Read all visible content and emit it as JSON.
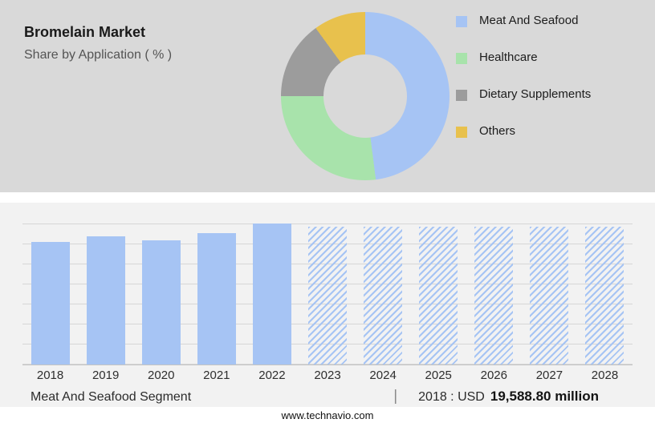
{
  "header": {
    "title": "Bromelain Market",
    "subtitle": "Share by Application ( % )"
  },
  "legend": {
    "items": [
      {
        "label": "Meat And Seafood",
        "color": "#a6c4f4"
      },
      {
        "label": "Healthcare",
        "color": "#a8e3ab"
      },
      {
        "label": "Dietary Supplements",
        "color": "#9c9c9c"
      },
      {
        "label": "Others",
        "color": "#e8c14d"
      }
    ]
  },
  "chart_data": [
    {
      "type": "pie",
      "subtype": "donut",
      "title": "Bromelain Market — Share by Application ( % )",
      "labels": [
        "Meat And Seafood",
        "Healthcare",
        "Dietary Supplements",
        "Others"
      ],
      "values": [
        48,
        27,
        15,
        10
      ],
      "colors": [
        "#a6c4f4",
        "#a8e3ab",
        "#9c9c9c",
        "#e8c14d"
      ],
      "legend_position": "right",
      "note": "slice sizes estimated visually; no numeric labels shown in image"
    },
    {
      "type": "bar",
      "categories": [
        "2018",
        "2019",
        "2020",
        "2021",
        "2022",
        "2023",
        "2024",
        "2025",
        "2026",
        "2027",
        "2028"
      ],
      "values": [
        87,
        91,
        88,
        93,
        100,
        98,
        98,
        98,
        98,
        98,
        98
      ],
      "forecast_start_index": 5,
      "bar_color": "#a6c4f4",
      "hatched_forecast": true,
      "grid": true,
      "ylim": [
        0,
        100
      ],
      "yaxis_labels": false,
      "note": "y-axis unlabeled; heights are relative estimates; 2023-2028 drawn as hatched forecast bars",
      "annotation": "Meat And Seafood Segment | 2018 : USD 19,588.80 million"
    }
  ],
  "caption": {
    "segment": "Meat And Seafood Segment",
    "separator": "|",
    "prefix": "2018 : USD",
    "value": "19,588.80 million"
  },
  "footer": {
    "url": "www.technavio.com"
  }
}
